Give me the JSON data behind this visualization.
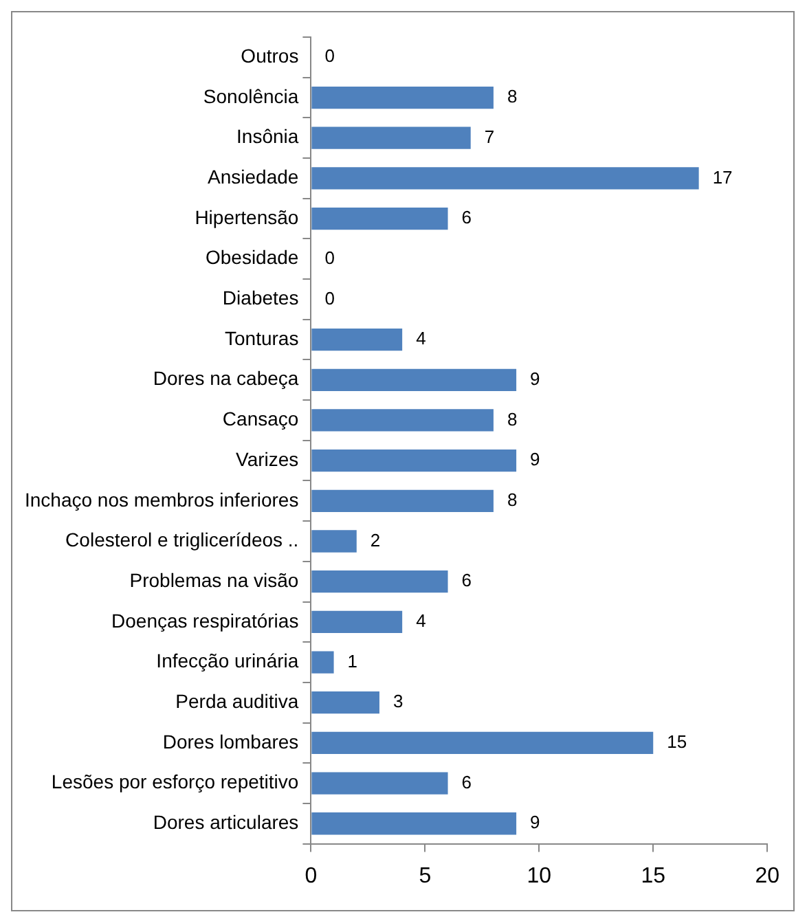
{
  "chart_data": {
    "type": "bar",
    "orientation": "horizontal",
    "categories": [
      "Outros",
      "Sonolência",
      "Insônia",
      "Ansiedade",
      "Hipertensão",
      "Obesidade",
      "Diabetes",
      "Tonturas",
      "Dores na cabeça",
      "Cansaço",
      "Varizes",
      "Inchaço nos membros inferiores",
      "Colesterol e triglicerídeos ..",
      "Problemas na visão",
      "Doenças respiratórias",
      "Infecção urinária",
      "Perda auditiva",
      "Dores lombares",
      "Lesões por esforço repetitivo",
      "Dores articulares"
    ],
    "values": [
      0,
      8,
      7,
      17,
      6,
      0,
      0,
      4,
      9,
      8,
      9,
      8,
      2,
      6,
      4,
      1,
      3,
      15,
      6,
      9
    ],
    "color": "#4f81bd",
    "xlim": [
      0,
      20
    ],
    "xticks": [
      0,
      5,
      10,
      15,
      20
    ],
    "grid": false,
    "legend": false,
    "data_labels": true
  }
}
